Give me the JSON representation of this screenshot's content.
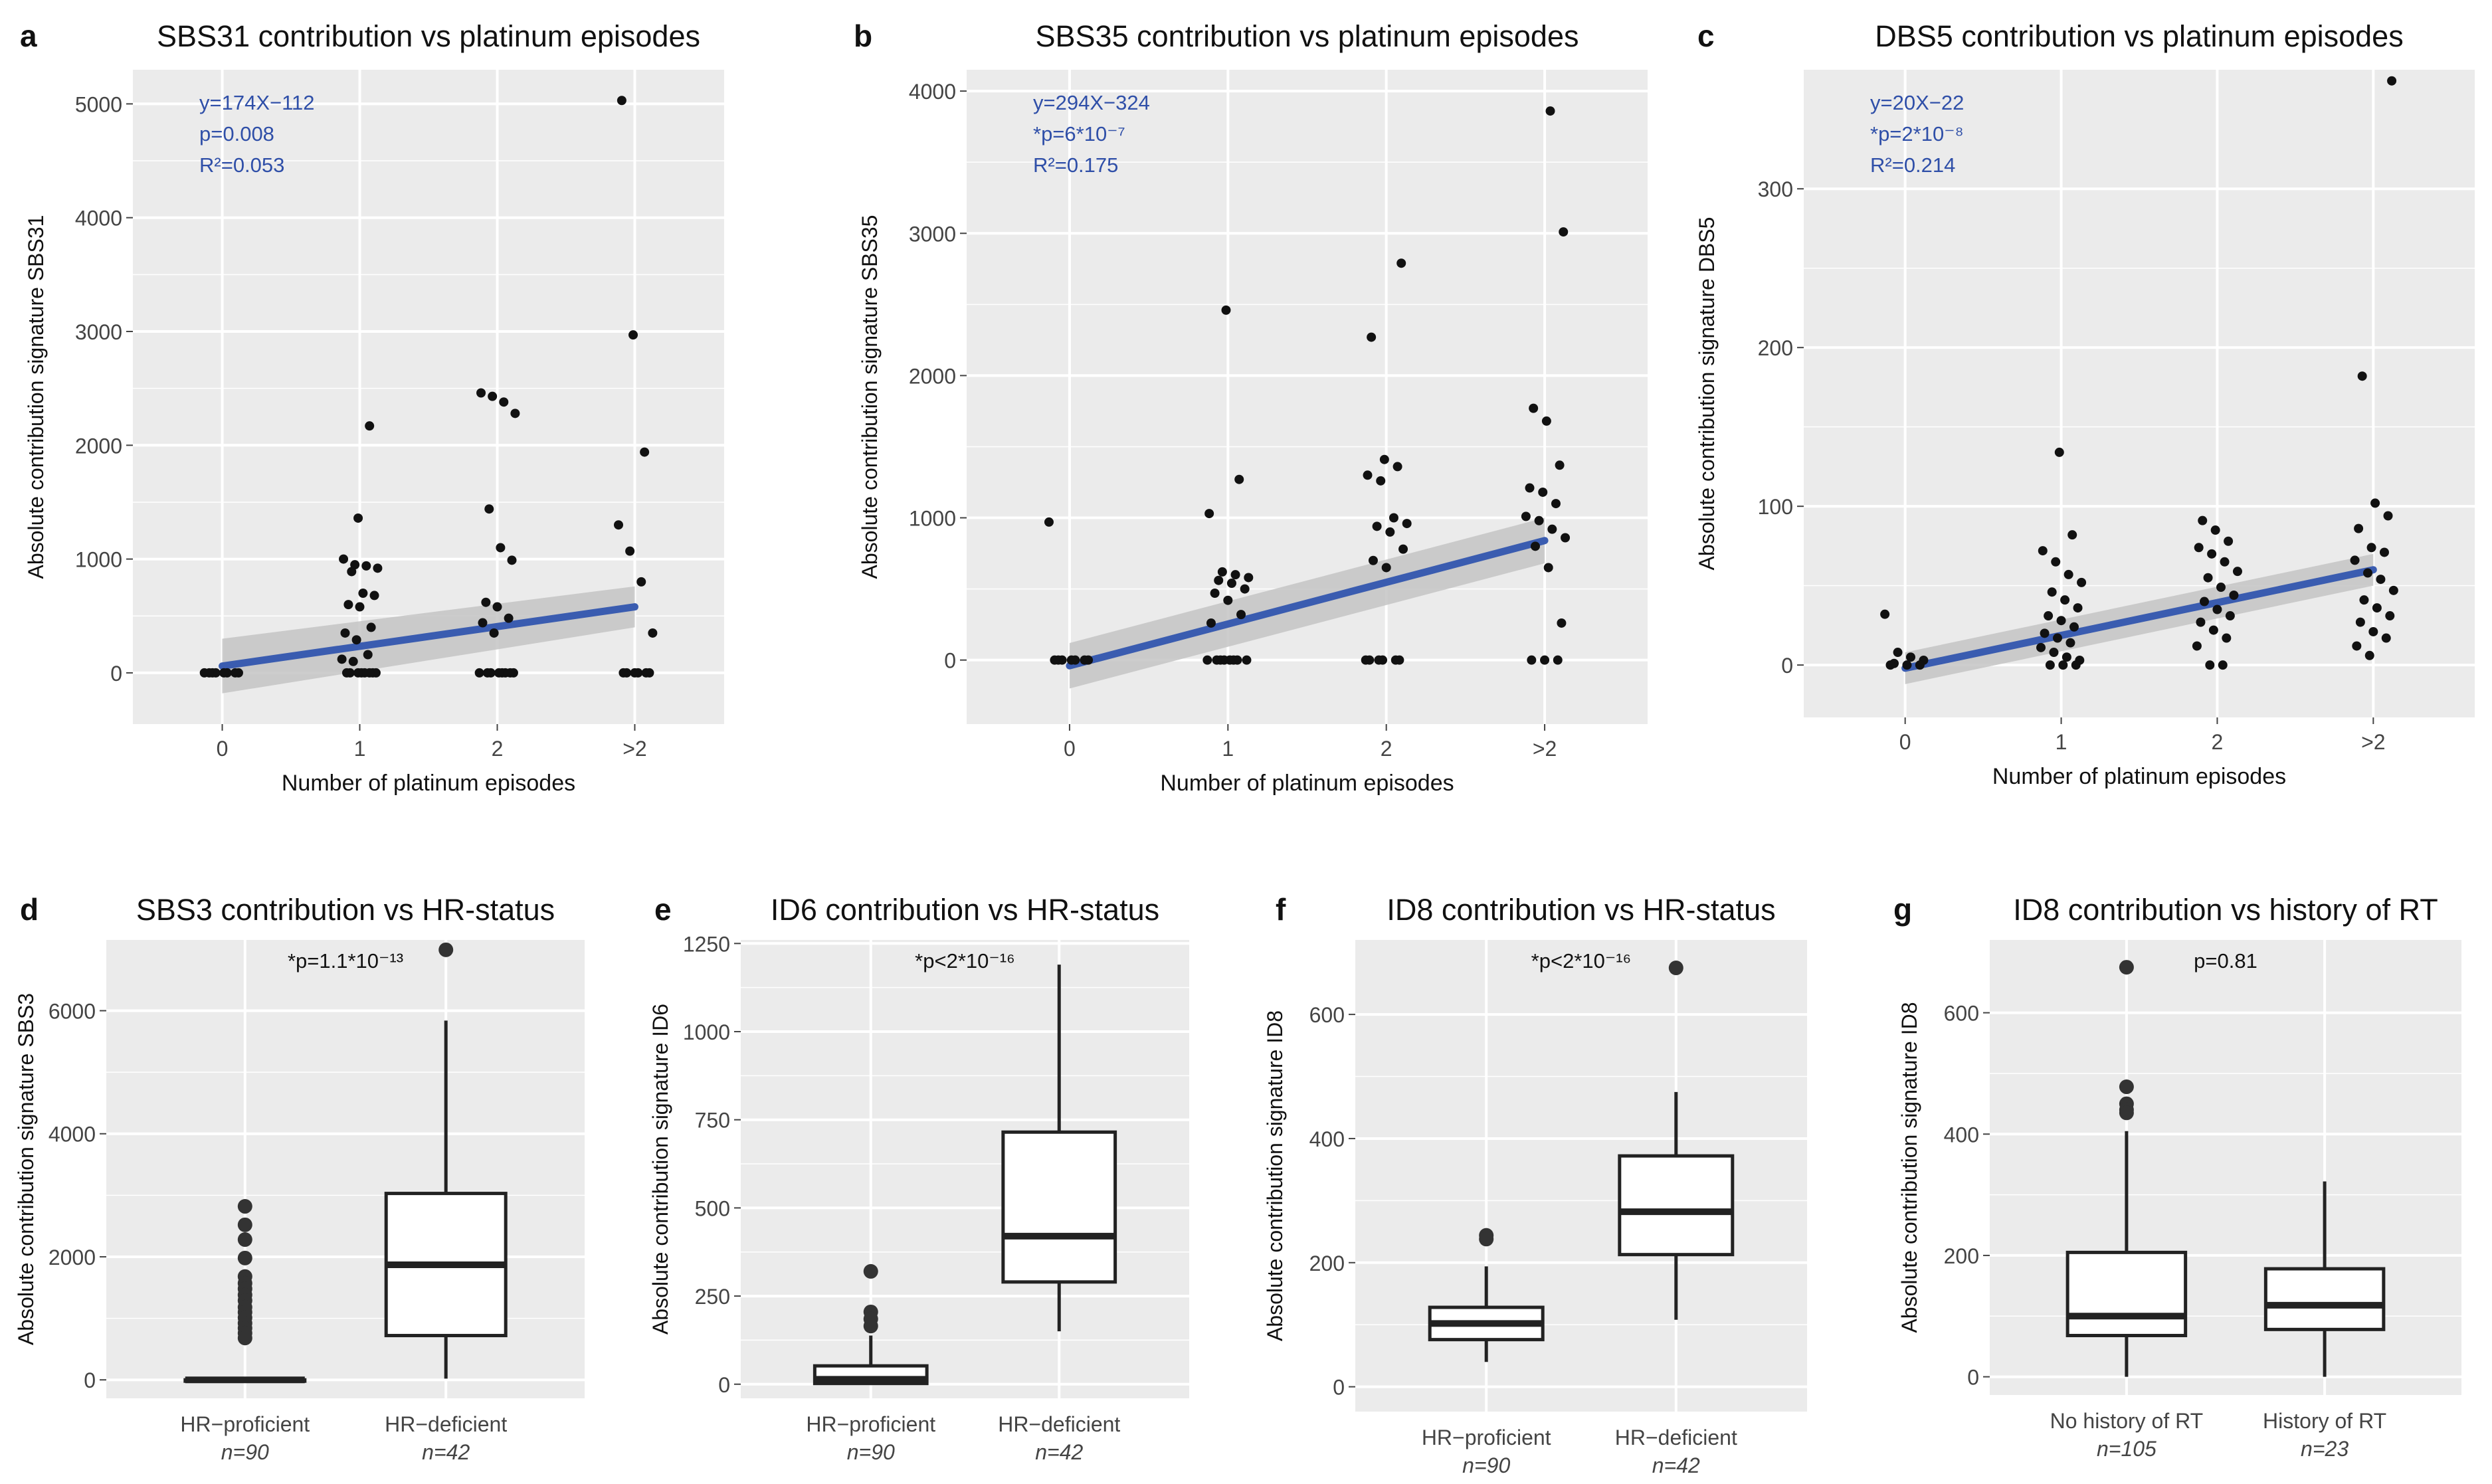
{
  "colors": {
    "panel_bg": "#EBEBEB",
    "grid": "#FFFFFF",
    "point": "#111111",
    "fit_line": "#3A5CB0",
    "ci_band": "#C4C4C4",
    "stats_text": "#2F4FA8",
    "box_line": "#222222",
    "box_fill": "#FFFFFF"
  },
  "chart_data": [
    {
      "type": "scatter",
      "letter": "a",
      "title": "SBS31 contribution vs platinum episodes",
      "xlabel": "Number of platinum episodes",
      "ylabel": "Absolute contribution signature SBS31",
      "categories": [
        "0",
        "1",
        "2",
        ">2"
      ],
      "ylim": [
        -450,
        5300
      ],
      "yticks": [
        0,
        1000,
        2000,
        3000,
        4000,
        5000
      ],
      "stats": [
        "y=174X−112",
        "p=0.008",
        "R²=0.053"
      ],
      "fit": {
        "y0": 60,
        "y3": 580,
        "ci0": [
          -180,
          300
        ],
        "ci3": [
          400,
          760
        ]
      },
      "points": [
        [
          0,
          0
        ],
        [
          0,
          0
        ],
        [
          0,
          0
        ],
        [
          0,
          0
        ],
        [
          0,
          0
        ],
        [
          0,
          0
        ],
        [
          0,
          0
        ],
        [
          0,
          0
        ],
        [
          1,
          1360
        ],
        [
          1,
          2170
        ],
        [
          1,
          1000
        ],
        [
          1,
          950
        ],
        [
          1,
          940
        ],
        [
          1,
          920
        ],
        [
          1,
          890
        ],
        [
          1,
          700
        ],
        [
          1,
          680
        ],
        [
          1,
          600
        ],
        [
          1,
          580
        ],
        [
          1,
          400
        ],
        [
          1,
          350
        ],
        [
          1,
          290
        ],
        [
          1,
          160
        ],
        [
          1,
          120
        ],
        [
          1,
          100
        ],
        [
          1,
          0
        ],
        [
          1,
          0
        ],
        [
          1,
          0
        ],
        [
          1,
          0
        ],
        [
          1,
          0
        ],
        [
          1,
          0
        ],
        [
          1,
          0
        ],
        [
          1,
          0
        ],
        [
          2,
          2460
        ],
        [
          2,
          2430
        ],
        [
          2,
          2380
        ],
        [
          2,
          2280
        ],
        [
          2,
          1440
        ],
        [
          2,
          1100
        ],
        [
          2,
          990
        ],
        [
          2,
          620
        ],
        [
          2,
          580
        ],
        [
          2,
          480
        ],
        [
          2,
          440
        ],
        [
          2,
          350
        ],
        [
          2,
          0
        ],
        [
          2,
          0
        ],
        [
          2,
          0
        ],
        [
          2,
          0
        ],
        [
          2,
          0
        ],
        [
          2,
          0
        ],
        [
          2,
          0
        ],
        [
          2,
          0
        ],
        [
          3,
          5030
        ],
        [
          3,
          2970
        ],
        [
          3,
          1940
        ],
        [
          3,
          1300
        ],
        [
          3,
          1070
        ],
        [
          3,
          800
        ],
        [
          3,
          350
        ],
        [
          3,
          0
        ],
        [
          3,
          0
        ],
        [
          3,
          0
        ],
        [
          3,
          0
        ],
        [
          3,
          0
        ],
        [
          3,
          0
        ]
      ]
    },
    {
      "type": "scatter",
      "letter": "b",
      "title": "SBS35 contribution vs platinum episodes",
      "xlabel": "Number of platinum episodes",
      "ylabel": "Absolute contribution signature SBS35",
      "categories": [
        "0",
        "1",
        "2",
        ">2"
      ],
      "ylim": [
        -450,
        4150
      ],
      "yticks": [
        0,
        1000,
        2000,
        3000,
        4000
      ],
      "stats": [
        "y=294X−324",
        "*p=6*10⁻⁷",
        "R²=0.175"
      ],
      "fit": {
        "y0": -40,
        "y3": 840,
        "ci0": [
          -200,
          120
        ],
        "ci3": [
          680,
          1000
        ]
      },
      "points": [
        [
          0,
          970
        ],
        [
          0,
          0
        ],
        [
          0,
          0
        ],
        [
          0,
          0
        ],
        [
          0,
          0
        ],
        [
          0,
          0
        ],
        [
          0,
          0
        ],
        [
          0,
          0
        ],
        [
          1,
          2460
        ],
        [
          1,
          1270
        ],
        [
          1,
          1030
        ],
        [
          1,
          620
        ],
        [
          1,
          600
        ],
        [
          1,
          580
        ],
        [
          1,
          560
        ],
        [
          1,
          540
        ],
        [
          1,
          500
        ],
        [
          1,
          470
        ],
        [
          1,
          420
        ],
        [
          1,
          320
        ],
        [
          1,
          260
        ],
        [
          1,
          0
        ],
        [
          1,
          0
        ],
        [
          1,
          0
        ],
        [
          1,
          0
        ],
        [
          1,
          0
        ],
        [
          1,
          0
        ],
        [
          1,
          0
        ],
        [
          1,
          0
        ],
        [
          2,
          2790
        ],
        [
          2,
          2270
        ],
        [
          2,
          1410
        ],
        [
          2,
          1360
        ],
        [
          2,
          1300
        ],
        [
          2,
          1260
        ],
        [
          2,
          1000
        ],
        [
          2,
          960
        ],
        [
          2,
          940
        ],
        [
          2,
          900
        ],
        [
          2,
          780
        ],
        [
          2,
          700
        ],
        [
          2,
          650
        ],
        [
          2,
          0
        ],
        [
          2,
          0
        ],
        [
          2,
          0
        ],
        [
          2,
          0
        ],
        [
          2,
          0
        ],
        [
          2,
          0
        ],
        [
          3,
          3860
        ],
        [
          3,
          3010
        ],
        [
          3,
          1770
        ],
        [
          3,
          1680
        ],
        [
          3,
          1370
        ],
        [
          3,
          1210
        ],
        [
          3,
          1180
        ],
        [
          3,
          1100
        ],
        [
          3,
          1010
        ],
        [
          3,
          980
        ],
        [
          3,
          920
        ],
        [
          3,
          860
        ],
        [
          3,
          800
        ],
        [
          3,
          650
        ],
        [
          3,
          260
        ],
        [
          3,
          0
        ],
        [
          3,
          0
        ],
        [
          3,
          0
        ]
      ]
    },
    {
      "type": "scatter",
      "letter": "c",
      "title": "DBS5 contribution vs platinum episodes",
      "xlabel": "Number of platinum episodes",
      "ylabel": "Absolute contribution signature DBS5",
      "categories": [
        "0",
        "1",
        "2",
        ">2"
      ],
      "ylim": [
        -33,
        375
      ],
      "yticks": [
        0,
        100,
        200,
        300
      ],
      "stats": [
        "y=20X−22",
        "*p=2*10⁻⁸",
        "R²=0.214"
      ],
      "fit": {
        "y0": -2,
        "y3": 60,
        "ci0": [
          -12,
          8
        ],
        "ci3": [
          50,
          70
        ]
      },
      "points": [
        [
          0,
          32
        ],
        [
          0,
          8
        ],
        [
          0,
          5
        ],
        [
          0,
          3
        ],
        [
          0,
          1
        ],
        [
          0,
          0
        ],
        [
          0,
          0
        ],
        [
          0,
          0
        ],
        [
          1,
          134
        ],
        [
          1,
          82
        ],
        [
          1,
          72
        ],
        [
          1,
          65
        ],
        [
          1,
          57
        ],
        [
          1,
          52
        ],
        [
          1,
          46
        ],
        [
          1,
          41
        ],
        [
          1,
          36
        ],
        [
          1,
          31
        ],
        [
          1,
          28
        ],
        [
          1,
          24
        ],
        [
          1,
          20
        ],
        [
          1,
          17
        ],
        [
          1,
          14
        ],
        [
          1,
          11
        ],
        [
          1,
          8
        ],
        [
          1,
          5
        ],
        [
          1,
          3
        ],
        [
          1,
          0
        ],
        [
          1,
          0
        ],
        [
          1,
          0
        ],
        [
          2,
          91
        ],
        [
          2,
          85
        ],
        [
          2,
          78
        ],
        [
          2,
          74
        ],
        [
          2,
          70
        ],
        [
          2,
          65
        ],
        [
          2,
          59
        ],
        [
          2,
          55
        ],
        [
          2,
          49
        ],
        [
          2,
          44
        ],
        [
          2,
          40
        ],
        [
          2,
          35
        ],
        [
          2,
          31
        ],
        [
          2,
          27
        ],
        [
          2,
          22
        ],
        [
          2,
          17
        ],
        [
          2,
          12
        ],
        [
          2,
          0
        ],
        [
          2,
          0
        ],
        [
          3,
          368
        ],
        [
          3,
          182
        ],
        [
          3,
          102
        ],
        [
          3,
          94
        ],
        [
          3,
          86
        ],
        [
          3,
          74
        ],
        [
          3,
          71
        ],
        [
          3,
          66
        ],
        [
          3,
          58
        ],
        [
          3,
          54
        ],
        [
          3,
          47
        ],
        [
          3,
          41
        ],
        [
          3,
          36
        ],
        [
          3,
          31
        ],
        [
          3,
          27
        ],
        [
          3,
          21
        ],
        [
          3,
          17
        ],
        [
          3,
          12
        ],
        [
          3,
          6
        ]
      ]
    },
    {
      "type": "box",
      "letter": "d",
      "title": "SBS3 contribution vs HR-status",
      "ylabel": "Absolute contribution signature SBS3",
      "ylim": [
        -300,
        7150
      ],
      "yticks": [
        0,
        2000,
        4000,
        6000
      ],
      "pvalue": "*p=1.1*10⁻¹³",
      "groups": [
        {
          "label": "HR−proficient",
          "n": "n=90",
          "box": {
            "low": 0,
            "q1": 0,
            "med": 0,
            "q3": 0,
            "high": 0
          },
          "outliers": [
            2820,
            2520,
            2280,
            1980,
            1680,
            1570,
            1480,
            1380,
            1290,
            1180,
            1100,
            1010,
            920,
            840,
            760,
            680
          ]
        },
        {
          "label": "HR−deficient",
          "n": "n=42",
          "box": {
            "low": 20,
            "q1": 720,
            "med": 1870,
            "q3": 3030,
            "high": 5840
          },
          "outliers": [
            6990
          ]
        }
      ]
    },
    {
      "type": "box",
      "letter": "e",
      "title": "ID6 contribution vs HR-status",
      "ylabel": "Absolute contribution signature ID6",
      "ylim": [
        -40,
        1260
      ],
      "yticks": [
        0,
        250,
        500,
        750,
        1000,
        1250
      ],
      "pvalue": "*p<2*10⁻¹⁶",
      "groups": [
        {
          "label": "HR−proficient",
          "n": "n=90",
          "box": {
            "low": 0,
            "q1": 2,
            "med": 14,
            "q3": 52,
            "high": 138
          },
          "outliers": [
            320,
            205,
            185,
            165
          ]
        },
        {
          "label": "HR−deficient",
          "n": "n=42",
          "box": {
            "low": 150,
            "q1": 290,
            "med": 420,
            "q3": 715,
            "high": 1190
          },
          "outliers": []
        }
      ]
    },
    {
      "type": "box",
      "letter": "f",
      "title": "ID8 contribution vs HR-status",
      "ylabel": "Absolute contribution signature ID8",
      "ylim": [
        -40,
        720
      ],
      "yticks": [
        0,
        200,
        400,
        600
      ],
      "pvalue": "*p<2*10⁻¹⁶",
      "groups": [
        {
          "label": "HR−proficient",
          "n": "n=90",
          "box": {
            "low": 40,
            "q1": 76,
            "med": 102,
            "q3": 128,
            "high": 194
          },
          "outliers": [
            244,
            238
          ]
        },
        {
          "label": "HR−deficient",
          "n": "n=42",
          "box": {
            "low": 108,
            "q1": 213,
            "med": 282,
            "q3": 372,
            "high": 475
          },
          "outliers": [
            675
          ]
        }
      ]
    },
    {
      "type": "box",
      "letter": "g",
      "title": "ID8 contribution vs history of RT",
      "ylabel": "Absolute contribution signature ID8",
      "ylim": [
        -30,
        720
      ],
      "yticks": [
        0,
        200,
        400,
        600
      ],
      "pvalue": "p=0.81",
      "groups": [
        {
          "label": "No history of RT",
          "n": "n=105",
          "box": {
            "low": 0,
            "q1": 68,
            "med": 100,
            "q3": 205,
            "high": 405
          },
          "outliers": [
            675,
            478,
            450,
            440,
            435
          ]
        },
        {
          "label": "History of RT",
          "n": "n=23",
          "box": {
            "low": 0,
            "q1": 78,
            "med": 118,
            "q3": 178,
            "high": 322
          },
          "outliers": []
        }
      ]
    }
  ]
}
